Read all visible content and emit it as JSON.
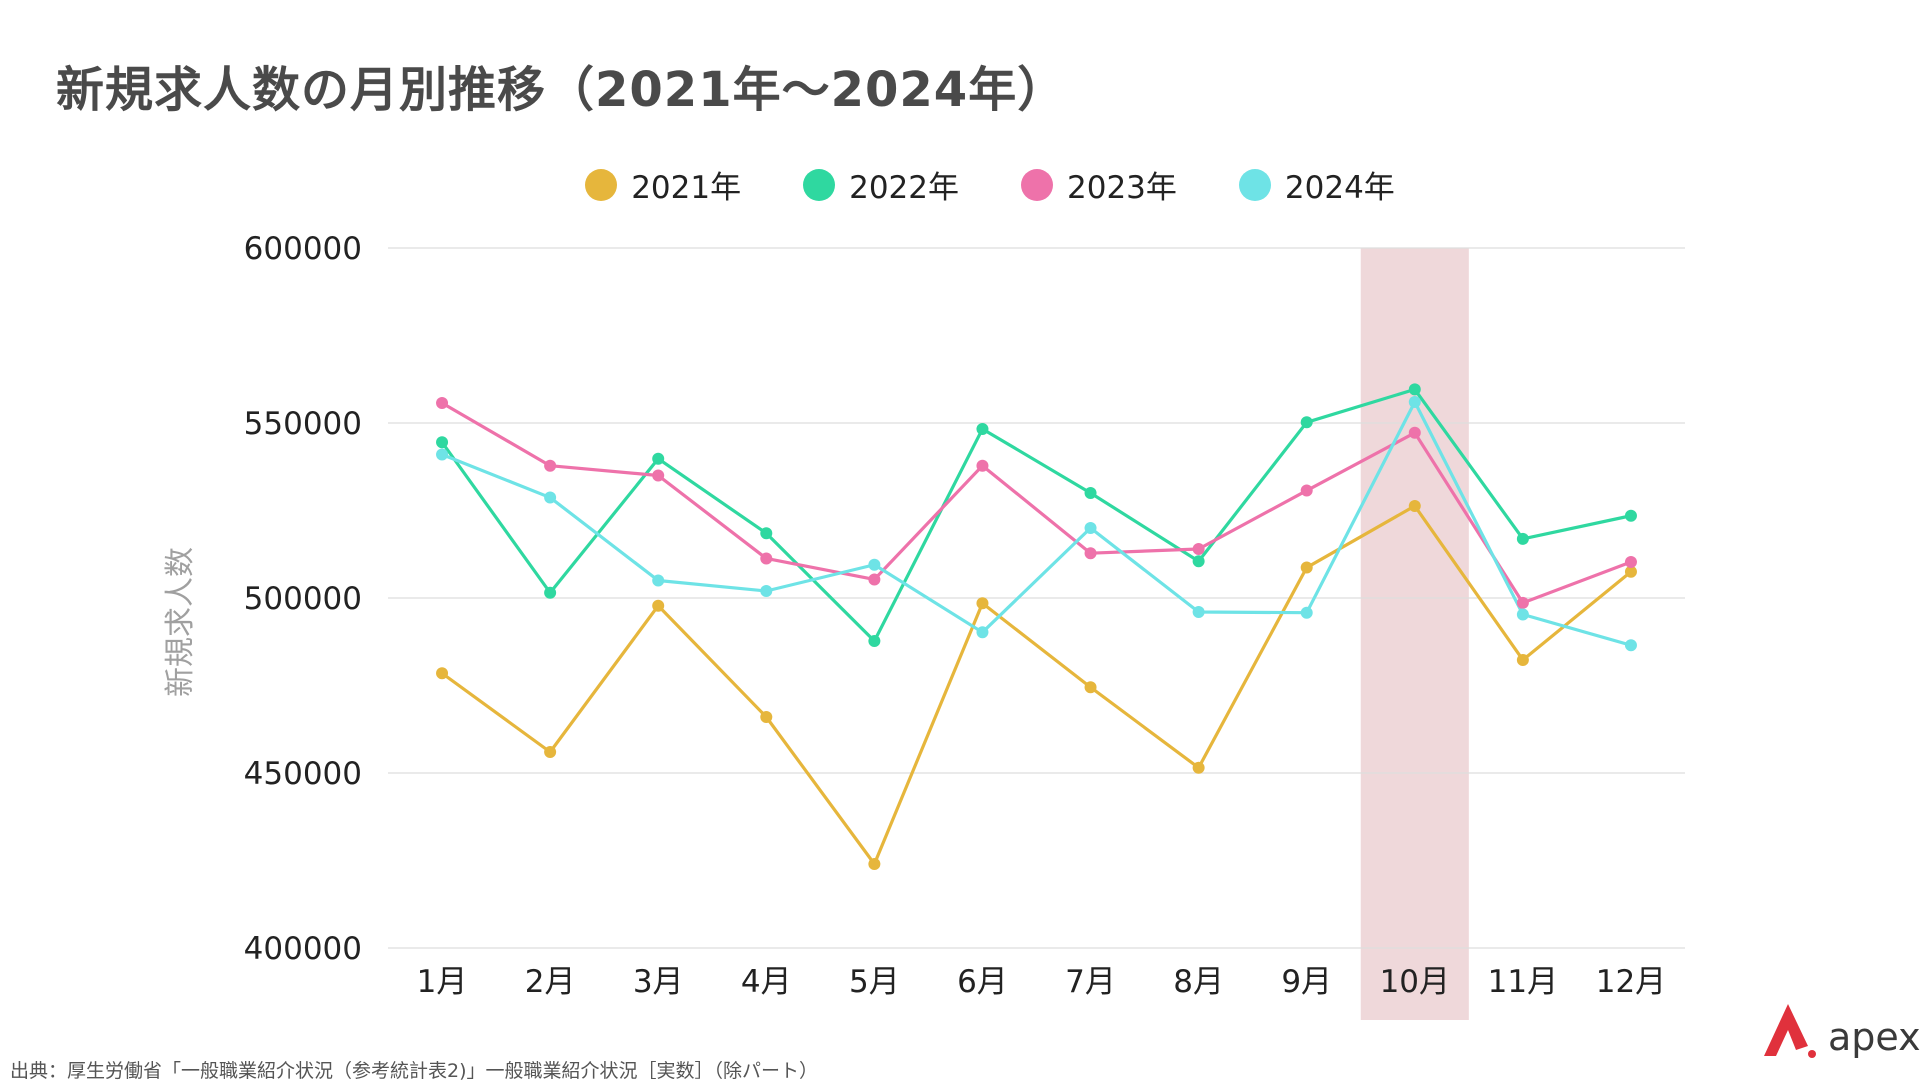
{
  "title": "新規求人数の月別推移（2021年〜2024年）",
  "source_note": "出典：厚生労働省「一般職業紹介状況（参考統計表2)」一般職業紹介状況［実数］（除パート）",
  "brand": {
    "name": "apex",
    "accent_color": "#e0313c"
  },
  "chart_data": {
    "type": "line",
    "title": "新規求人数の月別推移（2021年〜2024年）",
    "xlabel": "",
    "ylabel": "新規求人数",
    "categories": [
      "1月",
      "2月",
      "3月",
      "4月",
      "5月",
      "6月",
      "7月",
      "8月",
      "9月",
      "10月",
      "11月",
      "12月"
    ],
    "ylim": [
      400000,
      600000
    ],
    "yticks": [
      400000,
      450000,
      500000,
      550000,
      600000
    ],
    "ytick_labels": [
      "400000",
      "450000",
      "500000",
      "550000",
      "600000"
    ],
    "grid": true,
    "legend_position": "top-center",
    "highlight": {
      "category": "10月",
      "color": "#efd8da"
    },
    "series": [
      {
        "name": "2021年",
        "color": "#e6b63c",
        "values": [
          478500,
          456000,
          497800,
          466000,
          424000,
          498500,
          474500,
          451500,
          508700,
          526300,
          482300,
          507500
        ]
      },
      {
        "name": "2022年",
        "color": "#2fd8a0",
        "values": [
          544500,
          501500,
          539800,
          518500,
          487700,
          548300,
          530000,
          510500,
          550200,
          559600,
          516900,
          523500
        ]
      },
      {
        "name": "2023年",
        "color": "#ee72aa",
        "values": [
          555700,
          537800,
          535000,
          511300,
          505300,
          537800,
          512800,
          514000,
          530700,
          547200,
          498600,
          510300
        ]
      },
      {
        "name": "2024年",
        "color": "#6ee3e6",
        "values": [
          541000,
          528700,
          505000,
          502000,
          509500,
          490200,
          520000,
          496000,
          495800,
          556000,
          495300,
          486500
        ]
      }
    ]
  }
}
